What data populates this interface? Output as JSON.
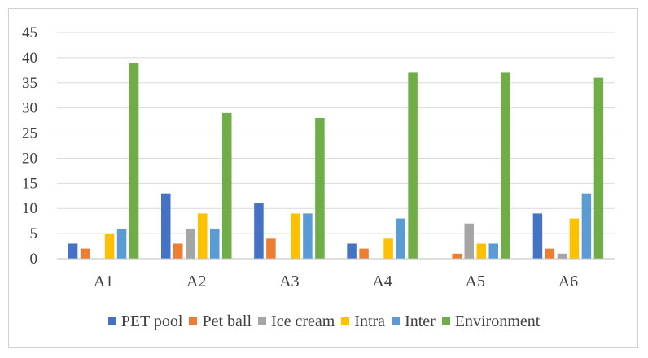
{
  "chart_data": {
    "type": "bar",
    "title": "",
    "xlabel": "",
    "ylabel": "",
    "ylim": [
      0,
      45
    ],
    "yticks": [
      0,
      5,
      10,
      15,
      20,
      25,
      30,
      35,
      40,
      45
    ],
    "grid": true,
    "legend_position": "bottom",
    "categories": [
      "A1",
      "A2",
      "A3",
      "A4",
      "A5",
      "A6"
    ],
    "series": [
      {
        "name": "PET pool",
        "color": "#4472C4",
        "values": [
          3,
          13,
          11,
          3,
          0,
          9
        ]
      },
      {
        "name": "Pet ball",
        "color": "#ED7D31",
        "values": [
          2,
          3,
          4,
          2,
          1,
          2
        ]
      },
      {
        "name": "Ice cream",
        "color": "#A5A5A5",
        "values": [
          0,
          6,
          0,
          0,
          7,
          1
        ]
      },
      {
        "name": "Intra",
        "color": "#FFC000",
        "values": [
          5,
          9,
          9,
          4,
          3,
          8
        ]
      },
      {
        "name": "Inter",
        "color": "#5B9BD5",
        "values": [
          6,
          6,
          9,
          8,
          3,
          13
        ]
      },
      {
        "name": "Environment",
        "color": "#70AD47",
        "values": [
          39,
          29,
          28,
          37,
          37,
          36
        ]
      }
    ]
  }
}
